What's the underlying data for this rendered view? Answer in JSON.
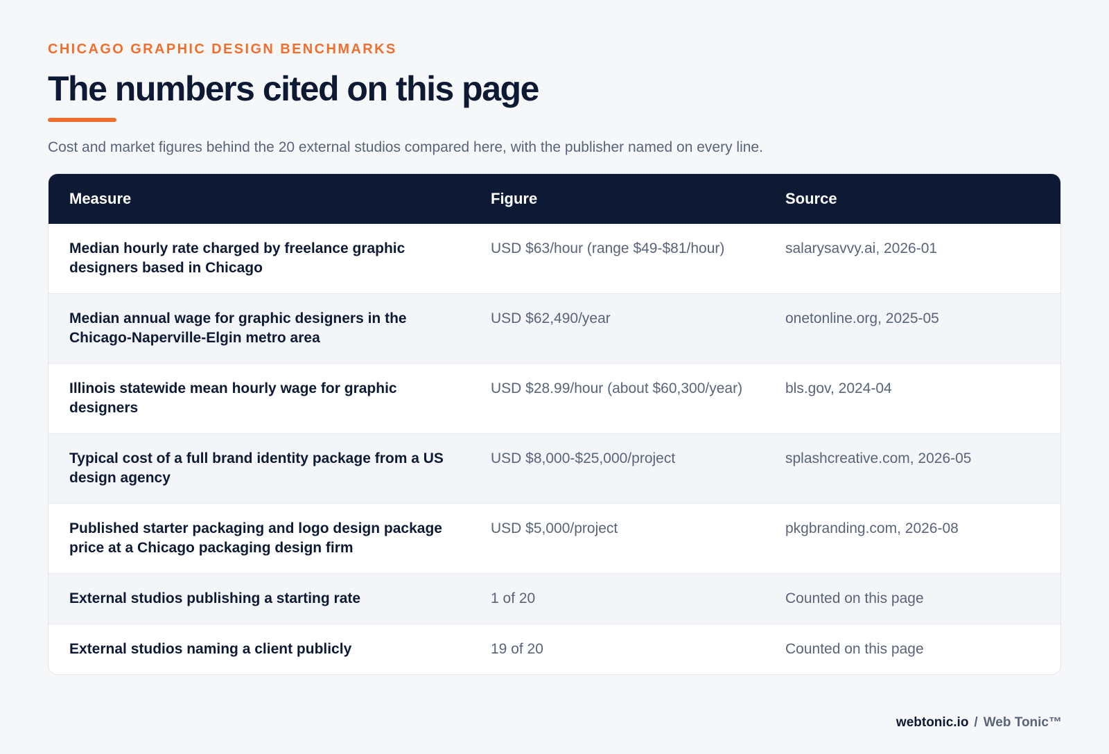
{
  "header": {
    "eyebrow": "CHICAGO GRAPHIC DESIGN BENCHMARKS",
    "title": "The numbers cited on this page",
    "subtitle": "Cost and market figures behind the 20 external studios compared here, with the publisher named on every line."
  },
  "table": {
    "columns": [
      "Measure",
      "Figure",
      "Source"
    ],
    "rows": [
      {
        "measure": "Median hourly rate charged by freelance graphic designers based in Chicago",
        "figure": "USD $63/hour (range $49-$81/hour)",
        "source": "salarysavvy.ai, 2026-01"
      },
      {
        "measure": "Median annual wage for graphic designers in the Chicago-Naperville-Elgin metro area",
        "figure": "USD $62,490/year",
        "source": "onetonline.org, 2025-05"
      },
      {
        "measure": "Illinois statewide mean hourly wage for graphic designers",
        "figure": "USD $28.99/hour (about $60,300/year)",
        "source": "bls.gov, 2024-04"
      },
      {
        "measure": "Typical cost of a full brand identity package from a US design agency",
        "figure": "USD $8,000-$25,000/project",
        "source": "splashcreative.com, 2026-05"
      },
      {
        "measure": "Published starter packaging and logo design package price at a Chicago packaging design firm",
        "figure": "USD $5,000/project",
        "source": "pkgbranding.com, 2026-08"
      },
      {
        "measure": "External studios publishing a starting rate",
        "figure": "1 of 20",
        "source": "Counted on this page"
      },
      {
        "measure": "External studios naming a client publicly",
        "figure": "19 of 20",
        "source": "Counted on this page"
      }
    ]
  },
  "footer": {
    "domain": "webtonic.io",
    "separator": "/",
    "brand": "Web Tonic™"
  },
  "colors": {
    "accent": "#ef6f2e",
    "navy": "#0e1a33",
    "muted_text": "#5a6478",
    "page_bg": "#f6f7f9"
  }
}
